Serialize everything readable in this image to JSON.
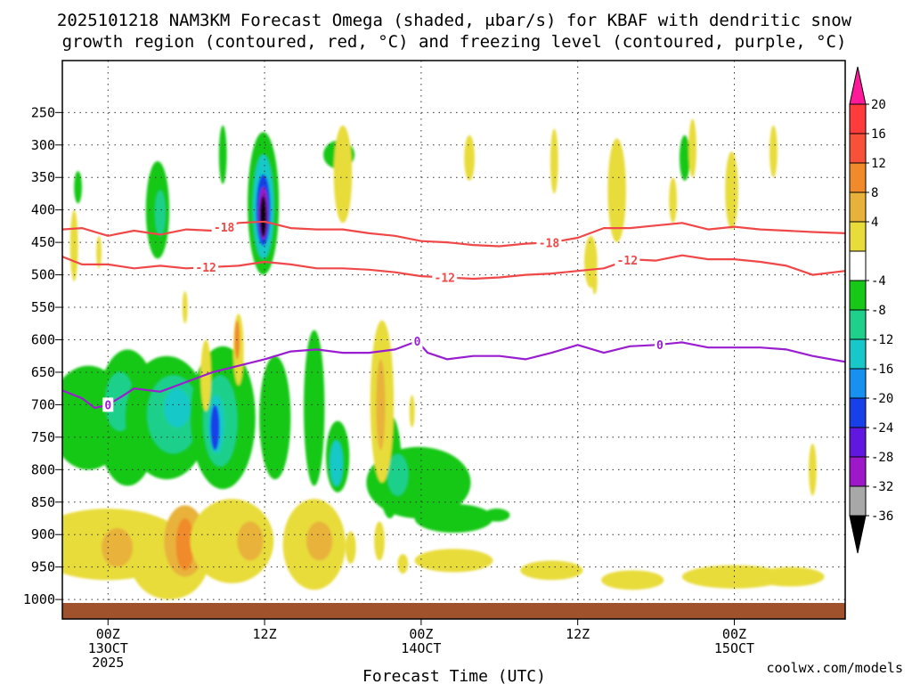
{
  "chart_data": {
    "type": "heatmap",
    "title_line1": "2025101218 NAM3KM Forecast Omega (shaded, μbar/s) for KBAF with dendritic snow",
    "title_line2": "growth region (contoured, red, °C) and freezing level (contoured, purple, °C)",
    "xlabel": "Forecast Time (UTC)",
    "credit": "coolwx.com/models",
    "x_range_hours": [
      -3.5,
      56.5
    ],
    "x_ticks": [
      {
        "hour": 0,
        "l1": "00Z",
        "l2": "13OCT",
        "l3": "2025"
      },
      {
        "hour": 12,
        "l1": "12Z",
        "l2": "",
        "l3": ""
      },
      {
        "hour": 24,
        "l1": "00Z",
        "l2": "14OCT",
        "l3": ""
      },
      {
        "hour": 36,
        "l1": "12Z",
        "l2": "",
        "l3": ""
      },
      {
        "hour": 48,
        "l1": "00Z",
        "l2": "15OCT",
        "l3": ""
      }
    ],
    "y_axis": "pressure (hPa)",
    "y_range_hpa": [
      1030,
      170
    ],
    "y_ticks": [
      250,
      300,
      350,
      400,
      450,
      500,
      550,
      600,
      650,
      700,
      750,
      800,
      850,
      900,
      950,
      1000
    ],
    "colorbar": {
      "ticks": [
        "20",
        "16",
        "12",
        "8",
        "4",
        "-4",
        "-8",
        "-12",
        "-16",
        "-20",
        "-24",
        "-28",
        "-32",
        "-36"
      ],
      "colors": [
        "#ff1a9a",
        "#ff3b3b",
        "#f8513a",
        "#f08a2a",
        "#e8b23a",
        "#e8dc3a",
        "#ffffff",
        "#18c818",
        "#1ed08c",
        "#18c8c8",
        "#1890f0",
        "#1840e8",
        "#6018e0",
        "#9c18c8",
        "#a8a8a8",
        "#000000"
      ]
    },
    "omega_regions": [
      {
        "hour": -2.3,
        "p": 365,
        "hw": 0.3,
        "hp": 25,
        "value": -5
      },
      {
        "hour": 3.8,
        "p": 400,
        "hw": 0.9,
        "hp": 75,
        "value": -7
      },
      {
        "hour": 4.0,
        "p": 405,
        "hw": 0.4,
        "hp": 35,
        "value": -11
      },
      {
        "hour": 8.8,
        "p": 315,
        "hw": 0.3,
        "hp": 45,
        "value": -5
      },
      {
        "hour": 11.9,
        "p": 390,
        "hw": 1.2,
        "hp": 110,
        "value": -6
      },
      {
        "hour": 11.9,
        "p": 395,
        "hw": 0.8,
        "hp": 80,
        "value": -13
      },
      {
        "hour": 11.9,
        "p": 400,
        "hw": 0.55,
        "hp": 55,
        "value": -21
      },
      {
        "hour": 11.9,
        "p": 405,
        "hw": 0.35,
        "hp": 40,
        "value": -30
      },
      {
        "hour": 11.9,
        "p": 410,
        "hw": 0.25,
        "hp": 32,
        "value": -37
      },
      {
        "hour": -1.5,
        "p": 720,
        "hw": 3.0,
        "hp": 80,
        "value": -6
      },
      {
        "hour": 1.5,
        "p": 720,
        "hw": 2.4,
        "hp": 105,
        "value": -6
      },
      {
        "hour": 0.9,
        "p": 695,
        "hw": 1.1,
        "hp": 45,
        "value": -11
      },
      {
        "hour": 4.5,
        "p": 720,
        "hw": 3.2,
        "hp": 95,
        "value": -7
      },
      {
        "hour": 5.0,
        "p": 715,
        "hw": 2.0,
        "hp": 60,
        "value": -11
      },
      {
        "hour": 5.3,
        "p": 705,
        "hw": 1.0,
        "hp": 30,
        "value": -14
      },
      {
        "hour": 8.8,
        "p": 720,
        "hw": 2.5,
        "hp": 110,
        "value": -7
      },
      {
        "hour": 8.6,
        "p": 725,
        "hw": 1.3,
        "hp": 70,
        "value": -11
      },
      {
        "hour": 8.3,
        "p": 730,
        "hw": 0.6,
        "hp": 45,
        "value": -15
      },
      {
        "hour": 8.2,
        "p": 735,
        "hw": 0.35,
        "hp": 35,
        "value": -21
      },
      {
        "hour": 12.8,
        "p": 720,
        "hw": 1.2,
        "hp": 95,
        "value": -6
      },
      {
        "hour": 15.8,
        "p": 705,
        "hw": 0.8,
        "hp": 120,
        "value": -6
      },
      {
        "hour": 17.6,
        "p": 780,
        "hw": 0.9,
        "hp": 55,
        "value": -7
      },
      {
        "hour": 17.5,
        "p": 790,
        "hw": 0.5,
        "hp": 35,
        "value": -12
      },
      {
        "hour": 21.6,
        "p": 795,
        "hw": 0.9,
        "hp": 80,
        "value": -6
      },
      {
        "hour": 23.8,
        "p": 820,
        "hw": 4.0,
        "hp": 55,
        "value": -6
      },
      {
        "hour": 22.2,
        "p": 808,
        "hw": 0.8,
        "hp": 32,
        "value": -11
      },
      {
        "hour": 26.5,
        "p": 875,
        "hw": 3.0,
        "hp": 22,
        "value": -5
      },
      {
        "hour": 29.8,
        "p": 870,
        "hw": 1.0,
        "hp": 10,
        "value": -6
      },
      {
        "hour": 17.7,
        "p": 315,
        "hw": 1.2,
        "hp": 22,
        "value": -4
      },
      {
        "hour": 44.2,
        "p": 320,
        "hw": 0.4,
        "hp": 35,
        "value": -6
      },
      {
        "hour": 4.7,
        "p": 940,
        "hw": 3.0,
        "hp": 60,
        "value": 6
      },
      {
        "hour": 0,
        "p": 915,
        "hw": 6.0,
        "hp": 55,
        "value": 6
      },
      {
        "hour": 0.7,
        "p": 920,
        "hw": 1.2,
        "hp": 30,
        "value": 10
      },
      {
        "hour": 5.9,
        "p": 910,
        "hw": 1.6,
        "hp": 55,
        "value": 9
      },
      {
        "hour": 5.9,
        "p": 915,
        "hw": 0.7,
        "hp": 40,
        "value": 14
      },
      {
        "hour": 9.5,
        "p": 910,
        "hw": 3.2,
        "hp": 65,
        "value": 6
      },
      {
        "hour": 10.9,
        "p": 910,
        "hw": 1.0,
        "hp": 30,
        "value": 10
      },
      {
        "hour": 15.8,
        "p": 915,
        "hw": 2.4,
        "hp": 70,
        "value": 6
      },
      {
        "hour": 16.2,
        "p": 910,
        "hw": 1.0,
        "hp": 30,
        "value": 10
      },
      {
        "hour": 18.6,
        "p": 920,
        "hw": 0.4,
        "hp": 25,
        "value": 5
      },
      {
        "hour": 20.8,
        "p": 910,
        "hw": 0.4,
        "hp": 30,
        "value": 5
      },
      {
        "hour": 22.6,
        "p": 945,
        "hw": 0.4,
        "hp": 15,
        "value": 5
      },
      {
        "hour": 26.5,
        "p": 940,
        "hw": 3.0,
        "hp": 18,
        "value": 5
      },
      {
        "hour": 34.0,
        "p": 955,
        "hw": 2.4,
        "hp": 15,
        "value": 5
      },
      {
        "hour": 40.2,
        "p": 970,
        "hw": 2.4,
        "hp": 15,
        "value": 5
      },
      {
        "hour": 48.0,
        "p": 965,
        "hw": 4.0,
        "hp": 18,
        "value": 5
      },
      {
        "hour": 52.3,
        "p": 965,
        "hw": 2.6,
        "hp": 15,
        "value": 5
      },
      {
        "hour": 21.0,
        "p": 695,
        "hw": 0.9,
        "hp": 125,
        "value": 6
      },
      {
        "hour": 20.9,
        "p": 700,
        "hw": 0.35,
        "hp": 70,
        "value": 11
      },
      {
        "hour": 23.3,
        "p": 710,
        "hw": 0.2,
        "hp": 25,
        "value": 5
      },
      {
        "hour": 7.5,
        "p": 655,
        "hw": 0.4,
        "hp": 55,
        "value": 5
      },
      {
        "hour": 10.0,
        "p": 615,
        "hw": 0.4,
        "hp": 55,
        "value": 6
      },
      {
        "hour": 9.9,
        "p": 600,
        "hw": 0.2,
        "hp": 30,
        "value": 12
      },
      {
        "hour": 5.9,
        "p": 550,
        "hw": 0.2,
        "hp": 25,
        "value": 5
      },
      {
        "hour": 18.0,
        "p": 345,
        "hw": 0.7,
        "hp": 75,
        "value": 5
      },
      {
        "hour": 27.7,
        "p": 320,
        "hw": 0.4,
        "hp": 35,
        "value": 5
      },
      {
        "hour": 34.2,
        "p": 325,
        "hw": 0.3,
        "hp": 50,
        "value": 5
      },
      {
        "hour": 39.0,
        "p": 370,
        "hw": 0.7,
        "hp": 80,
        "value": 5
      },
      {
        "hour": 43.3,
        "p": 385,
        "hw": 0.3,
        "hp": 35,
        "value": 5
      },
      {
        "hour": 44.8,
        "p": 305,
        "hw": 0.3,
        "hp": 45,
        "value": 5
      },
      {
        "hour": 37.0,
        "p": 480,
        "hw": 0.5,
        "hp": 40,
        "value": 5
      },
      {
        "hour": 37.3,
        "p": 510,
        "hw": 0.2,
        "hp": 20,
        "value": 5
      },
      {
        "hour": 47.8,
        "p": 370,
        "hw": 0.5,
        "hp": 60,
        "value": 5
      },
      {
        "hour": 51.0,
        "p": 310,
        "hw": 0.3,
        "hp": 40,
        "value": 5
      },
      {
        "hour": -2.6,
        "p": 455,
        "hw": 0.3,
        "hp": 55,
        "value": 5
      },
      {
        "hour": -0.7,
        "p": 465,
        "hw": 0.2,
        "hp": 25,
        "value": 5
      },
      {
        "hour": 54.0,
        "p": 800,
        "hw": 0.3,
        "hp": 40,
        "value": 5
      }
    ],
    "contours": [
      {
        "label": "-18",
        "color": "#f04848",
        "label_hours": [
          8.9,
          33.8
        ],
        "points": [
          [
            -3.5,
            430
          ],
          [
            -2,
            428
          ],
          [
            0,
            440
          ],
          [
            2,
            432
          ],
          [
            4,
            438
          ],
          [
            6,
            430
          ],
          [
            8,
            432
          ],
          [
            10,
            420
          ],
          [
            12,
            418
          ],
          [
            14,
            428
          ],
          [
            16,
            430
          ],
          [
            18,
            430
          ],
          [
            20,
            436
          ],
          [
            22,
            440
          ],
          [
            24,
            448
          ],
          [
            26,
            450
          ],
          [
            28,
            454
          ],
          [
            30,
            456
          ],
          [
            32,
            452
          ],
          [
            34,
            450
          ],
          [
            36,
            443
          ],
          [
            38,
            428
          ],
          [
            40,
            428
          ],
          [
            42,
            424
          ],
          [
            44,
            420
          ],
          [
            46,
            430
          ],
          [
            48,
            426
          ],
          [
            50,
            430
          ],
          [
            52,
            432
          ],
          [
            54,
            434
          ],
          [
            56.5,
            436
          ]
        ]
      },
      {
        "label": "-12",
        "color": "#f04848",
        "label_hours": [
          7.5,
          25.8,
          39.8
        ],
        "points": [
          [
            -3.5,
            472
          ],
          [
            -2,
            484
          ],
          [
            0,
            484
          ],
          [
            2,
            490
          ],
          [
            4,
            486
          ],
          [
            6,
            490
          ],
          [
            8,
            488
          ],
          [
            10,
            486
          ],
          [
            12,
            480
          ],
          [
            14,
            484
          ],
          [
            16,
            490
          ],
          [
            18,
            490
          ],
          [
            20,
            492
          ],
          [
            22,
            496
          ],
          [
            24,
            502
          ],
          [
            26,
            504
          ],
          [
            28,
            506
          ],
          [
            30,
            504
          ],
          [
            32,
            500
          ],
          [
            34,
            498
          ],
          [
            36,
            494
          ],
          [
            38,
            490
          ],
          [
            40,
            476
          ],
          [
            42,
            478
          ],
          [
            44,
            470
          ],
          [
            46,
            476
          ],
          [
            48,
            476
          ],
          [
            50,
            480
          ],
          [
            52,
            486
          ],
          [
            54,
            500
          ],
          [
            56.5,
            494
          ]
        ]
      },
      {
        "label": "0",
        "color": "#9a1ed0",
        "label_hours": [
          0,
          23.7,
          42.3
        ],
        "points": [
          [
            -3.5,
            678
          ],
          [
            -2,
            690
          ],
          [
            -1,
            705
          ],
          [
            0,
            700
          ],
          [
            1,
            688
          ],
          [
            2,
            675
          ],
          [
            4,
            680
          ],
          [
            6,
            665
          ],
          [
            8,
            650
          ],
          [
            10,
            640
          ],
          [
            12,
            630
          ],
          [
            14,
            618
          ],
          [
            16,
            615
          ],
          [
            18,
            620
          ],
          [
            20,
            620
          ],
          [
            22,
            615
          ],
          [
            23.7,
            602
          ],
          [
            24.5,
            620
          ],
          [
            26,
            630
          ],
          [
            28,
            625
          ],
          [
            30,
            625
          ],
          [
            32,
            630
          ],
          [
            34,
            620
          ],
          [
            36,
            608
          ],
          [
            38,
            620
          ],
          [
            40,
            610
          ],
          [
            42,
            608
          ],
          [
            44,
            604
          ],
          [
            46,
            612
          ],
          [
            48,
            612
          ],
          [
            50,
            612
          ],
          [
            52,
            615
          ],
          [
            54,
            625
          ],
          [
            56.5,
            634
          ]
        ]
      }
    ]
  }
}
